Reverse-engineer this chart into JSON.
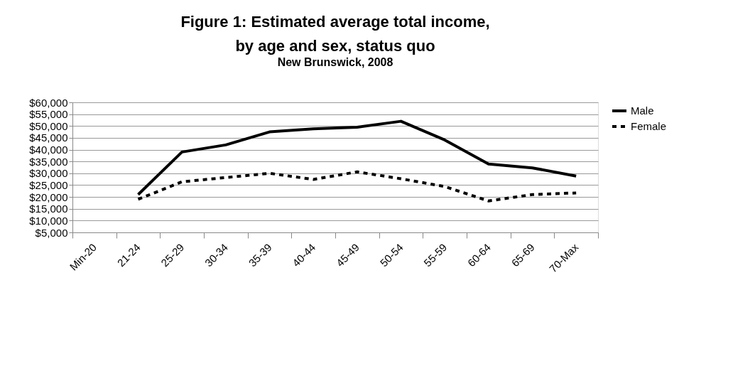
{
  "chart_data": {
    "type": "line",
    "title": "Figure 1:  Estimated average total income,\nby age and sex, status quo",
    "subtitle": "New Brunswick, 2008",
    "categories": [
      "Min-20",
      "21-24",
      "25-29",
      "30-34",
      "35-39",
      "40-44",
      "45-49",
      "50-54",
      "55-59",
      "60-64",
      "65-69",
      "70-Max"
    ],
    "series": [
      {
        "name": "Male",
        "color": "#000000",
        "line_style": "solid",
        "values": [
          null,
          21000,
          39000,
          42000,
          47500,
          48800,
          49500,
          52000,
          44100,
          33900,
          32300,
          28800
        ]
      },
      {
        "name": "Female",
        "color": "#000000",
        "line_style": "dashed",
        "values": [
          null,
          19000,
          26400,
          28200,
          30000,
          27400,
          30600,
          27700,
          24400,
          18300,
          21000,
          21700
        ]
      }
    ],
    "ylim": [
      5000,
      60000
    ],
    "yticks": [
      {
        "value": 5000,
        "label": "$5,000"
      },
      {
        "value": 10000,
        "label": "$10,000"
      },
      {
        "value": 15000,
        "label": "$15,000"
      },
      {
        "value": 20000,
        "label": "$20,000"
      },
      {
        "value": 25000,
        "label": "$25,000"
      },
      {
        "value": 30000,
        "label": "$30,000"
      },
      {
        "value": 35000,
        "label": "$35,000"
      },
      {
        "value": 40000,
        "label": "$40,000"
      },
      {
        "value": 45000,
        "label": "$45,000"
      },
      {
        "value": 50000,
        "label": "$50,000"
      },
      {
        "value": 55000,
        "label": "$55,000"
      },
      {
        "value": 60000,
        "label": "$60,000"
      }
    ],
    "grid": "y",
    "legend": "right",
    "marker": "none"
  }
}
